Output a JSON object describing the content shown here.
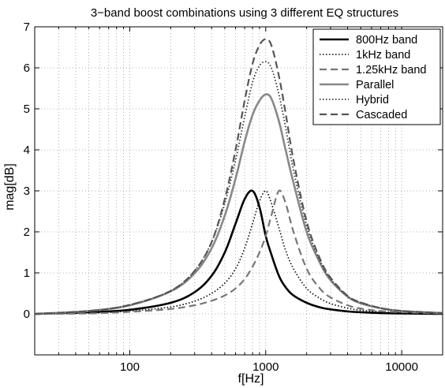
{
  "chart_data": {
    "type": "line",
    "title": "3−band boost combinations using 3 different EQ structures",
    "xlabel": "f[Hz]",
    "ylabel": "mag[dB]",
    "xscale": "log",
    "xlim": [
      20,
      20000
    ],
    "ylim": [
      -1,
      7
    ],
    "grid": true,
    "legend_position": "top-right",
    "x_ticks": [
      {
        "value": 100,
        "label": "100"
      },
      {
        "value": 1000,
        "label": "1000"
      },
      {
        "value": 10000,
        "label": "10000"
      }
    ],
    "y_ticks": [
      {
        "value": 0,
        "label": "0"
      },
      {
        "value": 1,
        "label": "1"
      },
      {
        "value": 2,
        "label": "2"
      },
      {
        "value": 3,
        "label": "3"
      },
      {
        "value": 4,
        "label": "4"
      },
      {
        "value": 5,
        "label": "5"
      },
      {
        "value": 6,
        "label": "6"
      },
      {
        "value": 7,
        "label": "7"
      }
    ],
    "x": [
      20,
      50,
      100,
      200,
      300,
      400,
      500,
      600,
      700,
      800,
      900,
      1000,
      1100,
      1250,
      1400,
      1600,
      2000,
      2500,
      3000,
      4000,
      5000,
      7000,
      10000,
      20000
    ],
    "series": [
      {
        "name": "800Hz band",
        "color": "#000000",
        "dash": "solid",
        "values": [
          0.0,
          0.04,
          0.1,
          0.27,
          0.53,
          0.93,
          1.5,
          2.2,
          2.8,
          3.0,
          2.6,
          1.9,
          1.45,
          0.93,
          0.65,
          0.45,
          0.27,
          0.16,
          0.11,
          0.06,
          0.04,
          0.02,
          0.01,
          0.0
        ]
      },
      {
        "name": "1kHz band",
        "color": "#000000",
        "dash": "dotted",
        "values": [
          0.0,
          0.02,
          0.07,
          0.17,
          0.31,
          0.5,
          0.75,
          1.1,
          1.6,
          2.2,
          2.75,
          3.0,
          2.7,
          2.1,
          1.55,
          1.1,
          0.62,
          0.38,
          0.25,
          0.14,
          0.09,
          0.05,
          0.03,
          0.01
        ]
      },
      {
        "name": "1.25kHz band",
        "color": "#777777",
        "dash": "dashed",
        "values": [
          0.0,
          0.01,
          0.05,
          0.12,
          0.21,
          0.32,
          0.45,
          0.62,
          0.85,
          1.15,
          1.5,
          1.9,
          2.4,
          3.0,
          2.7,
          2.0,
          1.1,
          0.62,
          0.4,
          0.21,
          0.13,
          0.07,
          0.04,
          0.01
        ]
      },
      {
        "name": "Parallel",
        "color": "#888888",
        "dash": "solid",
        "values": [
          0.0,
          0.07,
          0.21,
          0.55,
          0.99,
          1.6,
          2.4,
          3.3,
          4.2,
          4.85,
          5.2,
          5.35,
          5.25,
          4.7,
          4.0,
          3.2,
          2.0,
          1.25,
          0.82,
          0.42,
          0.26,
          0.14,
          0.07,
          0.02
        ]
      },
      {
        "name": "Hybrid",
        "color": "#333333",
        "dash": "dotted",
        "values": [
          0.0,
          0.07,
          0.22,
          0.56,
          1.05,
          1.75,
          2.7,
          3.75,
          4.8,
          5.65,
          6.05,
          6.15,
          6.0,
          5.35,
          4.55,
          3.5,
          2.15,
          1.3,
          0.85,
          0.43,
          0.27,
          0.14,
          0.07,
          0.02
        ]
      },
      {
        "name": "Cascaded",
        "color": "#555555",
        "dash": "dashed",
        "values": [
          0.0,
          0.07,
          0.22,
          0.56,
          1.05,
          1.75,
          2.8,
          4.0,
          5.2,
          6.1,
          6.55,
          6.7,
          6.55,
          5.8,
          4.9,
          3.75,
          2.25,
          1.35,
          0.88,
          0.44,
          0.28,
          0.14,
          0.07,
          0.02
        ]
      }
    ]
  }
}
